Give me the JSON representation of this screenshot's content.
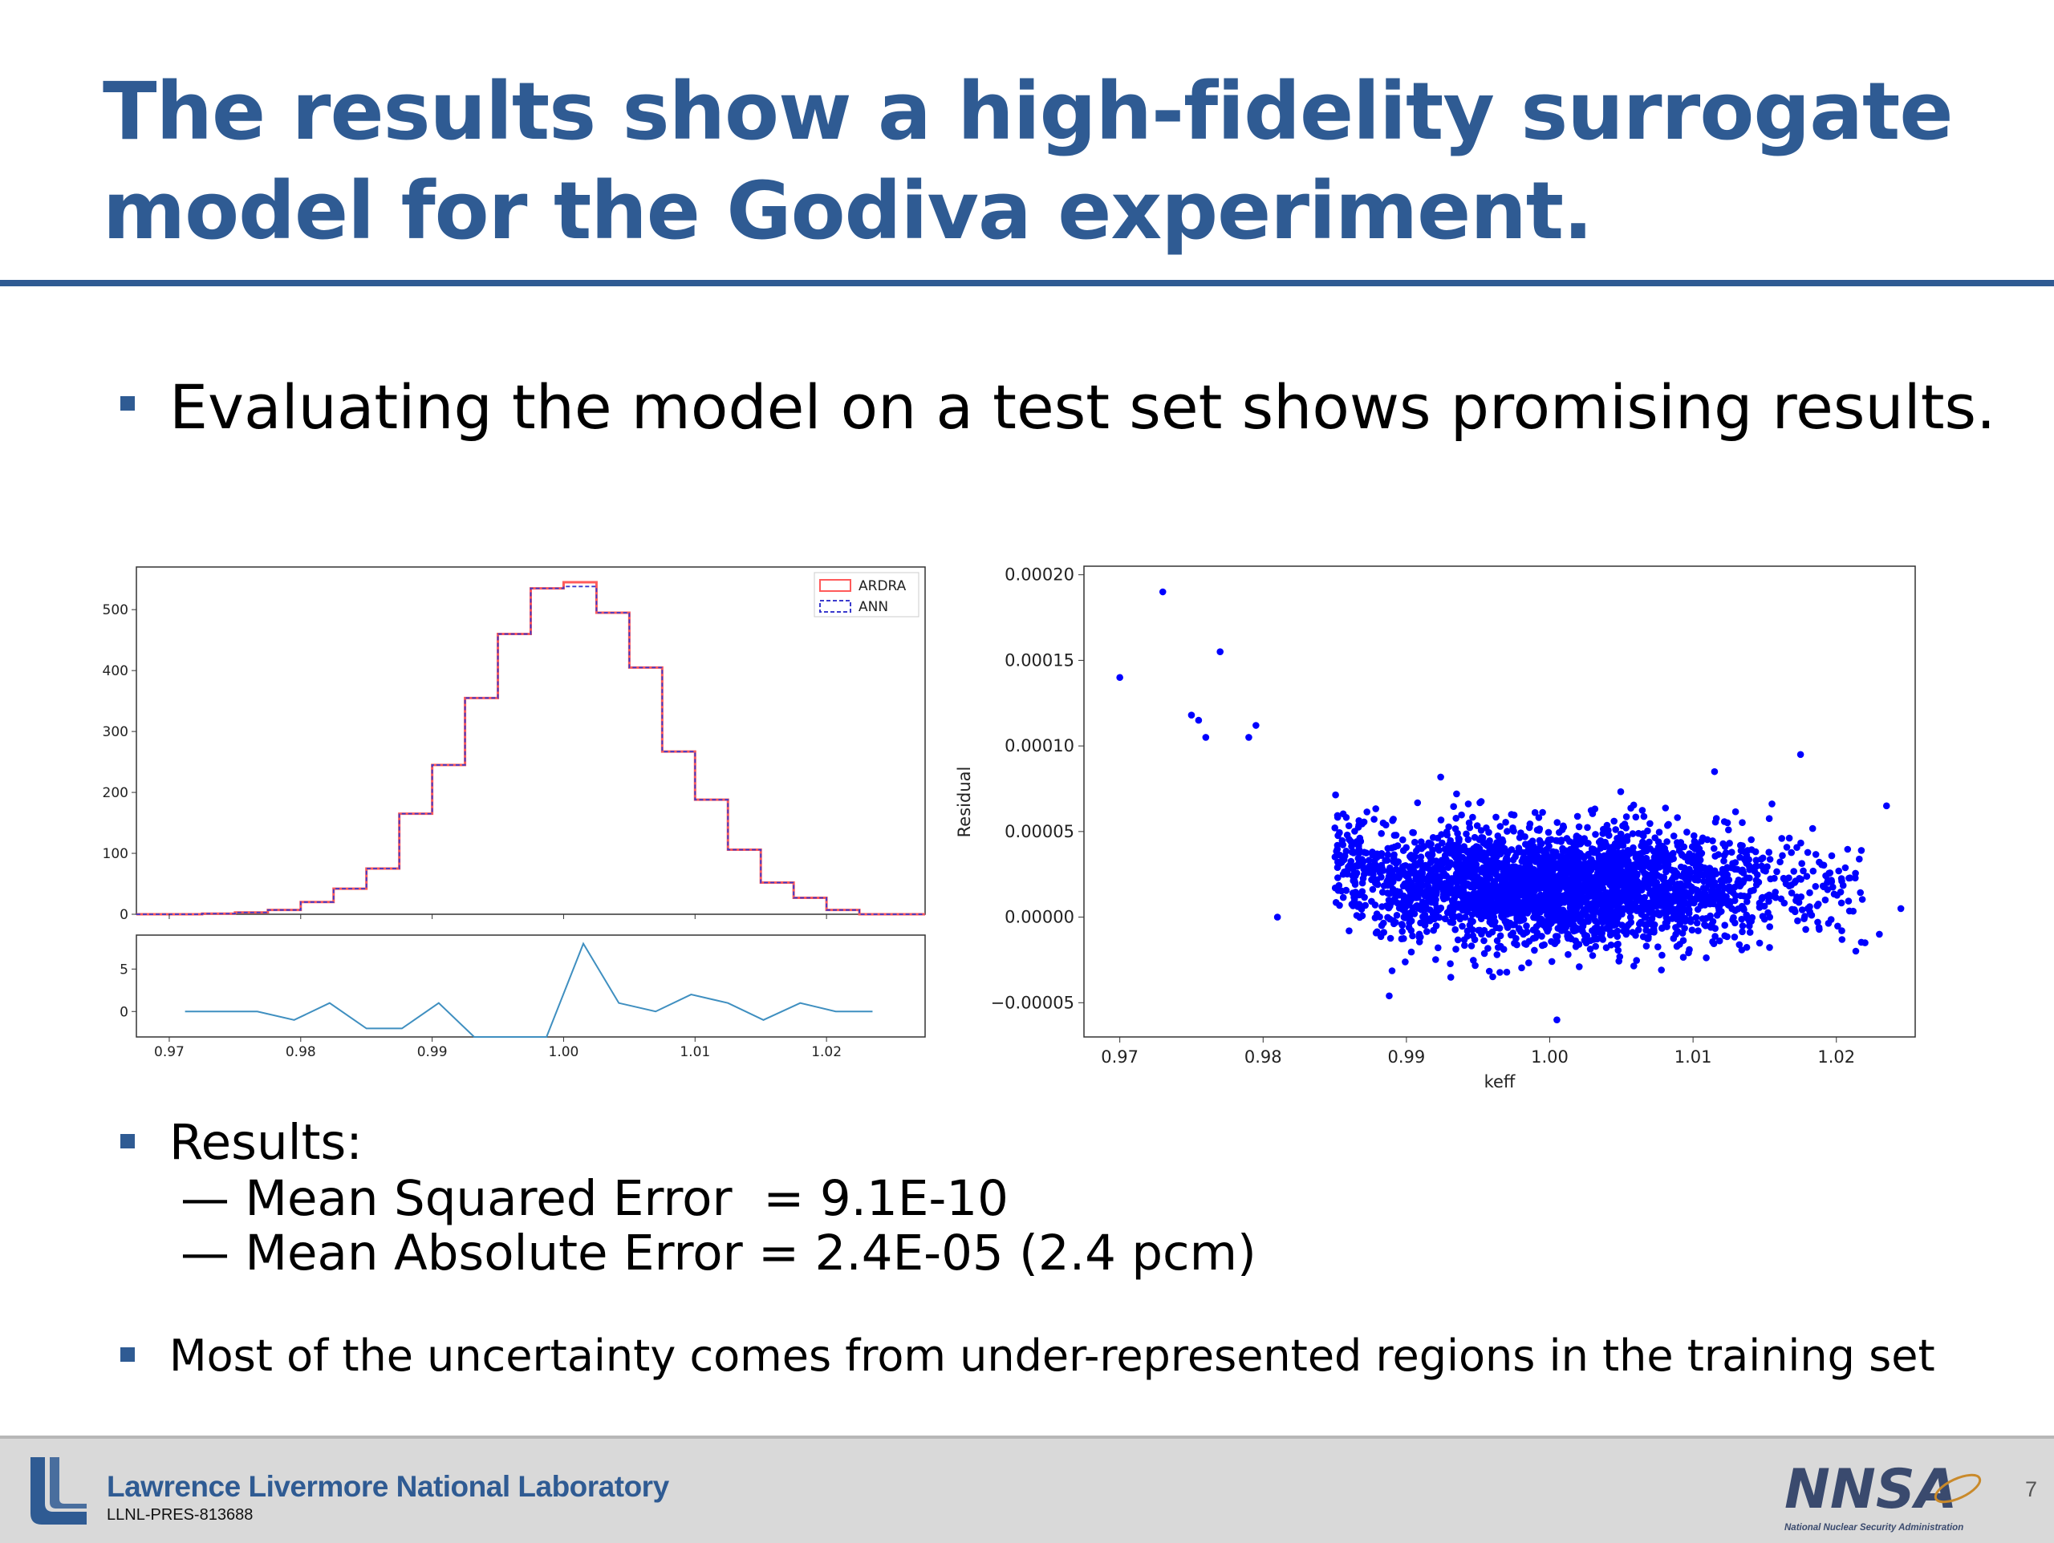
{
  "slide": {
    "title": "The results show a high-fidelity surrogate model for the Godiva experiment.",
    "bullet1": "Evaluating the model on a test set shows promising results.",
    "bullet2": "Results:",
    "sub1": "— Mean Squared Error  = 9.1E-10",
    "sub2": "— Mean Absolute Error = 2.4E-05 (2.4 pcm)",
    "bullet3": "Most of the uncertainty comes from under-represented regions in the training set",
    "accent_color": "#2f5b93"
  },
  "footer": {
    "lab_name": "Lawrence Livermore National Laboratory",
    "doc_code": "LLNL-PRES-813688",
    "page_number": "7",
    "nnsa_logo_text": "NNSA",
    "nnsa_caption": "National Nuclear Security Administration"
  },
  "chart_data": [
    {
      "type": "bar",
      "subtype": "step histogram with difference panel",
      "title": "",
      "xlabel": "",
      "ylabel": "",
      "xlim": [
        0.9675,
        1.0275
      ],
      "ylim": [
        0,
        570
      ],
      "yticks": [
        0,
        100,
        200,
        300,
        400,
        500
      ],
      "xticks": [
        "0.97",
        "0.98",
        "0.99",
        "1.00",
        "1.01",
        "1.02"
      ],
      "bin_edges": [
        0.9675,
        0.97,
        0.9725,
        0.975,
        0.9775,
        0.98,
        0.9825,
        0.985,
        0.9875,
        0.99,
        0.9925,
        0.995,
        0.9975,
        1.0,
        1.0025,
        1.005,
        1.0075,
        1.01,
        1.0125,
        1.015,
        1.0175,
        1.02,
        1.0225,
        1.025,
        1.0275
      ],
      "legend_position": "top-right",
      "series": [
        {
          "name": "ARDRA",
          "color": "#ff5a5a",
          "style": "solid",
          "values": [
            0,
            0,
            1,
            3,
            7,
            20,
            42,
            75,
            165,
            245,
            355,
            460,
            535,
            545,
            495,
            405,
            267,
            188,
            106,
            52,
            27,
            7,
            0,
            0
          ]
        },
        {
          "name": "ANN",
          "color": "#3a3acd",
          "style": "dashed",
          "values": [
            0,
            0,
            1,
            3,
            7,
            20,
            42,
            75,
            165,
            245,
            355,
            460,
            535,
            538,
            495,
            405,
            267,
            188,
            106,
            52,
            27,
            7,
            0,
            0
          ]
        }
      ],
      "difference_panel": {
        "yticks": [
          0,
          5
        ],
        "ylim": [
          -3,
          9
        ],
        "color": "#3f8fc0",
        "x": [
          0.9712,
          0.974,
          0.9767,
          0.9795,
          0.9822,
          0.985,
          0.9877,
          0.9905,
          0.9932,
          0.996,
          0.9987,
          1.0015,
          1.0042,
          1.007,
          1.0097,
          1.0125,
          1.0152,
          1.018,
          1.0207,
          1.0235
        ],
        "values": [
          0,
          0,
          0,
          -1,
          1,
          -2,
          -2,
          1,
          -3,
          -3,
          -3,
          8,
          1,
          0,
          2,
          1,
          -1,
          1,
          0,
          0
        ]
      }
    },
    {
      "type": "scatter",
      "title": "",
      "xlabel": "keff",
      "ylabel": "Residual",
      "xlim": [
        0.9675,
        1.0255
      ],
      "ylim": [
        -7e-05,
        0.000205
      ],
      "xticks": [
        "0.97",
        "0.98",
        "0.99",
        "1.00",
        "1.01",
        "1.02"
      ],
      "yticks": [
        "−0.00005",
        "0.00000",
        "0.00005",
        "0.00010",
        "0.00015",
        "0.00020"
      ],
      "color": "#0000ff",
      "notable_points": [
        [
          0.97,
          0.00014
        ],
        [
          0.973,
          0.00019
        ],
        [
          0.977,
          0.000155
        ],
        [
          0.975,
          0.000118
        ],
        [
          0.9755,
          0.000115
        ],
        [
          0.976,
          0.000105
        ],
        [
          0.9795,
          0.000112
        ],
        [
          0.979,
          0.000105
        ],
        [
          0.981,
          0.0
        ],
        [
          0.986,
          -8e-06
        ],
        [
          0.9888,
          -4.6e-05
        ],
        [
          1.0005,
          -6e-05
        ],
        [
          1.0235,
          6.5e-05
        ],
        [
          1.0245,
          5e-06
        ],
        [
          1.023,
          -1e-05
        ],
        [
          1.022,
          -1.5e-05
        ],
        [
          1.0175,
          9.5e-05
        ],
        [
          1.0115,
          8.5e-05
        ]
      ],
      "cluster": {
        "n": 3000,
        "x_center": 1.0,
        "x_sd": 0.0085,
        "y_center": 1.8e-05,
        "y_sd": 1.7e-05,
        "x_range": [
          0.985,
          1.022
        ]
      }
    }
  ]
}
